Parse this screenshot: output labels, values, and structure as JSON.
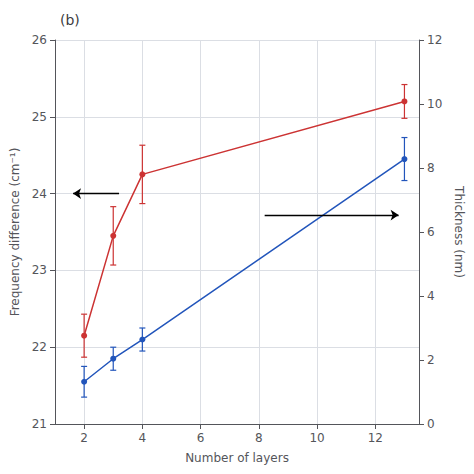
{
  "chart_data": {
    "type": "line",
    "title": "(b)",
    "xlabel": "Number of layers",
    "ylabel": "Frequency difference (cm⁻¹)",
    "y2label": "Thickness (nm)",
    "x": [
      2,
      3,
      4,
      13
    ],
    "xlim": [
      1,
      13.5
    ],
    "xticks": [
      2,
      4,
      6,
      8,
      10,
      12
    ],
    "ylim": [
      21,
      26
    ],
    "yticks": [
      21,
      22,
      23,
      24,
      25,
      26
    ],
    "y2lim": [
      0,
      12
    ],
    "y2ticks": [
      0,
      2,
      4,
      6,
      8,
      10,
      12
    ],
    "grid": true,
    "series": [
      {
        "color": "#cc3333",
        "marker": "circle",
        "line_style": "solid",
        "values": [
          22.15,
          23.45,
          24.25,
          25.2
        ],
        "yerr": [
          0.28,
          0.38,
          0.38,
          0.22
        ]
      },
      {
        "color": "#2255bb",
        "marker": "circle",
        "line_style": "solid",
        "values": [
          21.55,
          21.85,
          22.1,
          24.45
        ],
        "yerr": [
          0.2,
          0.15,
          0.15,
          0.28
        ]
      }
    ],
    "arrows": [
      {
        "from": [
          3.2,
          24.0
        ],
        "to": [
          1.62,
          24.0
        ],
        "color": "black"
      },
      {
        "from": [
          8.2,
          23.72
        ],
        "to": [
          12.8,
          23.72
        ],
        "color": "black"
      }
    ]
  }
}
